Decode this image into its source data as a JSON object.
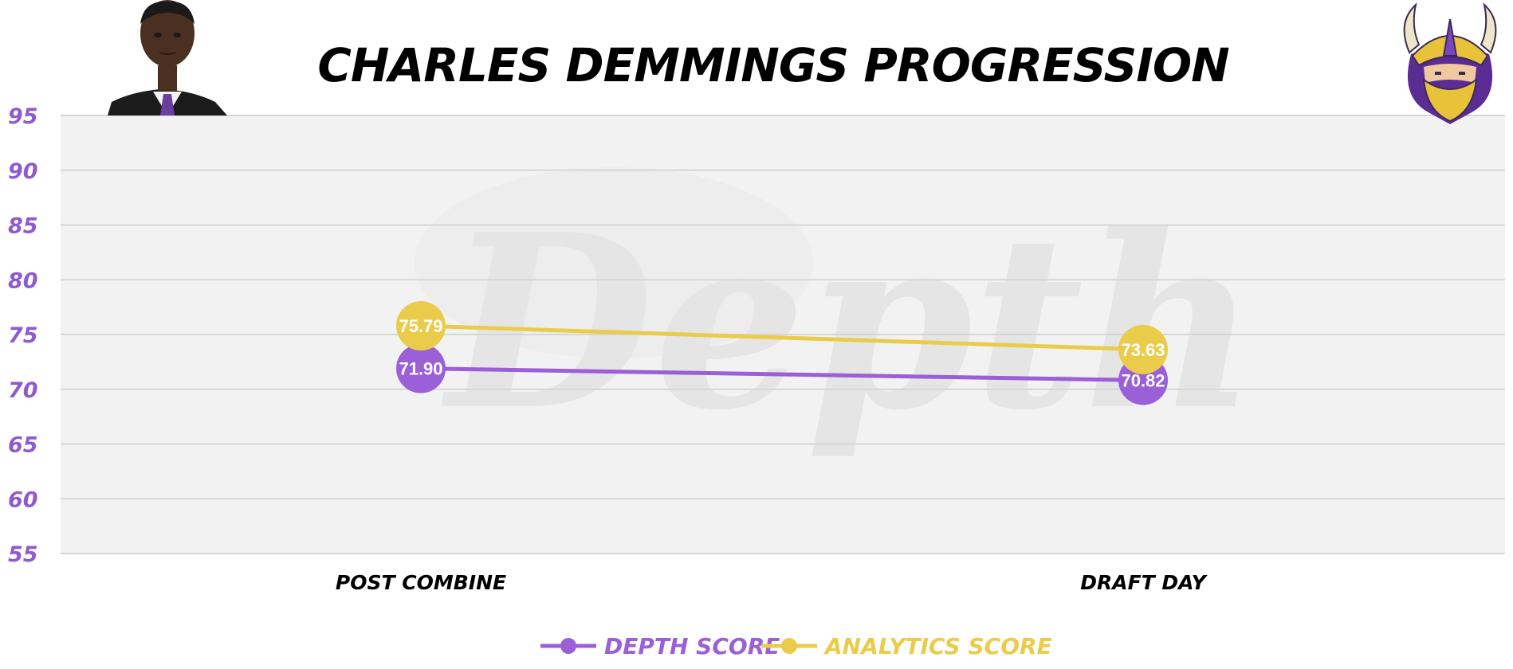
{
  "colors": {
    "depth": "#9b5fd8",
    "analytics": "#ebcc4a",
    "ytick": "#8e5ad0",
    "plot_bg": "#f2f2f2",
    "grid": "#d6d6d6"
  },
  "icons": {
    "player_photo": "player-photo",
    "team_logo": "viking-logo-icon",
    "watermark": "depth-watermark"
  },
  "watermark_text": "Depth",
  "chart_data": {
    "type": "line",
    "title": "CHARLES DEMMINGS PROGRESSION",
    "categories": [
      "POST COMBINE",
      "DRAFT DAY"
    ],
    "series": [
      {
        "name": "DEPTH SCORE",
        "values": [
          71.9,
          70.82
        ],
        "labels": [
          "71.90",
          "70.82"
        ]
      },
      {
        "name": "ANALYTICS SCORE",
        "values": [
          75.79,
          73.63
        ],
        "labels": [
          "75.79",
          "73.63"
        ]
      }
    ],
    "ylim": [
      55,
      95
    ],
    "yticks": [
      95,
      90,
      85,
      80,
      75,
      70,
      65,
      60,
      55
    ],
    "grid": true,
    "legend_position": "bottom-center"
  }
}
